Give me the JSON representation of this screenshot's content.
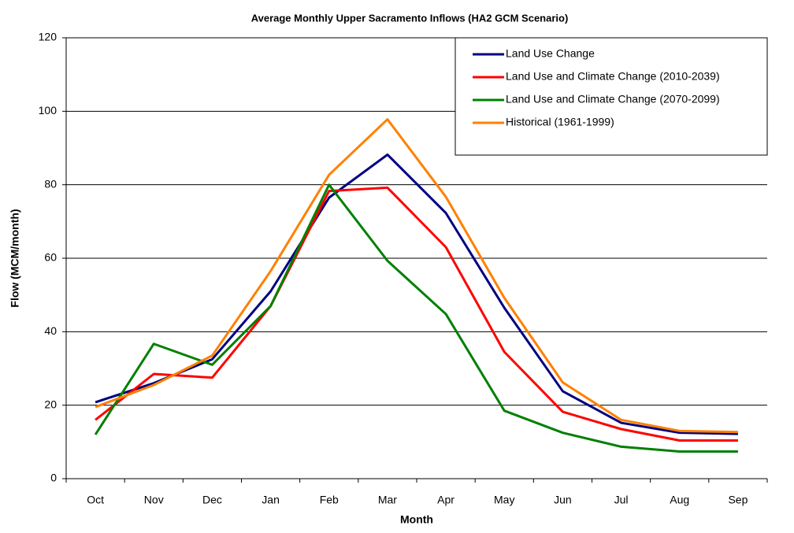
{
  "chart_data": {
    "type": "line",
    "title": "Average Monthly Upper Sacramento Inflows (HA2 GCM Scenario)",
    "x_label": "Month",
    "y_label": "Flow (MCM/month)",
    "categories": [
      "Oct",
      "Nov",
      "Dec",
      "Jan",
      "Feb",
      "Mar",
      "Apr",
      "May",
      "Jun",
      "Jul",
      "Aug",
      "Sep"
    ],
    "series": [
      {
        "name": "Land Use Change",
        "color": "#000080",
        "values": [
          20.8,
          26,
          32.5,
          51,
          76.5,
          88.2,
          72.3,
          46.5,
          23.8,
          15.2,
          12.5,
          12.2
        ]
      },
      {
        "name": "Land Use and Climate Change (2010-2039)",
        "color": "#ff0000",
        "values": [
          16,
          28.5,
          27.5,
          47,
          78.3,
          79.2,
          63,
          34.5,
          18.2,
          13.5,
          10.4,
          10.4
        ]
      },
      {
        "name": "Land Use and Climate Change (2070-2099)",
        "color": "#008000",
        "values": [
          12,
          36.7,
          31,
          47,
          80,
          59.3,
          44.8,
          18.5,
          12.5,
          8.7,
          7.4,
          7.4
        ]
      },
      {
        "name": "Historical (1961-1999)",
        "color": "#ff8000",
        "values": [
          19.5,
          25.5,
          33.5,
          56.5,
          82.7,
          97.8,
          76.7,
          49.2,
          26.2,
          16,
          13,
          12.7
        ]
      }
    ],
    "ylim": [
      0,
      120
    ],
    "yticks": [
      0,
      20,
      40,
      60,
      80,
      100,
      120
    ],
    "grid": true,
    "legend": "upper right"
  }
}
